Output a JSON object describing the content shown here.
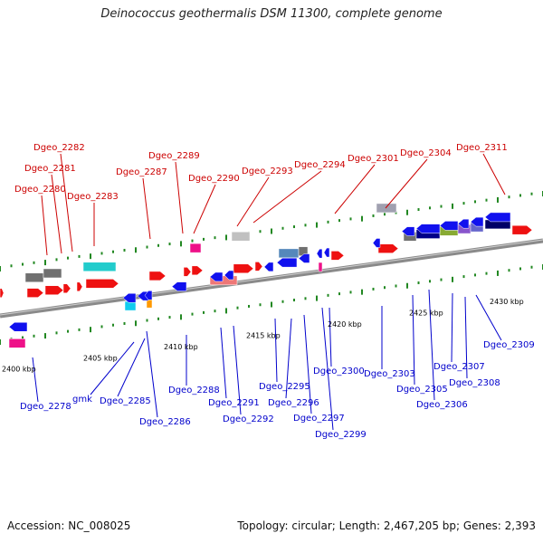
{
  "title": "Deinococcus geothermalis DSM 11300, complete genome",
  "footer": {
    "accession": "Accession: NC_008025",
    "summary": "Topology: circular; Length: 2,467,205 bp; Genes: 2,393"
  },
  "colors": {
    "backbone": "#888888",
    "tick": "#228822",
    "forward_label": "#cc0000",
    "reverse_label": "#0000cc"
  },
  "kbp_labels": [
    "2400 kbp",
    "2405 kbp",
    "2410 kbp",
    "2415 kbp",
    "2420 kbp",
    "2425 kbp",
    "2430 kbp"
  ],
  "forward_genes": [
    "Dgeo_2280",
    "Dgeo_2281",
    "Dgeo_2282",
    "Dgeo_2283",
    "Dgeo_2287",
    "Dgeo_2289",
    "Dgeo_2290",
    "Dgeo_2293",
    "Dgeo_2294",
    "Dgeo_2301",
    "Dgeo_2304",
    "Dgeo_2311"
  ],
  "reverse_genes": [
    "Dgeo_2278",
    "gmk",
    "Dgeo_2285",
    "Dgeo_2286",
    "Dgeo_2288",
    "Dgeo_2291",
    "Dgeo_2292",
    "Dgeo_2295",
    "Dgeo_2296",
    "Dgeo_2297",
    "Dgeo_2299",
    "Dgeo_2300",
    "Dgeo_2303",
    "Dgeo_2305",
    "Dgeo_2306",
    "Dgeo_2307",
    "Dgeo_2308",
    "Dgeo_2309"
  ]
}
